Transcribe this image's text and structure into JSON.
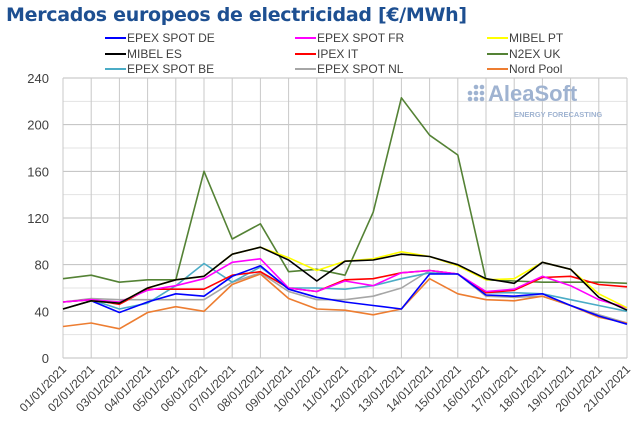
{
  "chart_data": {
    "type": "line",
    "title": "Mercados europeos de electricidad [€/MWh]",
    "xlabel": "",
    "ylabel": "",
    "ylim": [
      0,
      240
    ],
    "yticks": [
      0,
      40,
      80,
      120,
      160,
      200,
      240
    ],
    "grid": true,
    "legend_position": "top",
    "categories": [
      "01/01/2021",
      "02/01/2021",
      "03/01/2021",
      "04/01/2021",
      "05/01/2021",
      "06/01/2021",
      "07/01/2021",
      "08/01/2021",
      "09/01/2021",
      "10/01/2021",
      "11/01/2021",
      "12/01/2021",
      "13/01/2021",
      "14/01/2021",
      "15/01/2021",
      "16/01/2021",
      "17/01/2021",
      "18/01/2021",
      "19/01/2021",
      "20/01/2021",
      "21/01/2021"
    ],
    "series": [
      {
        "name": "EPEX SPOT DE",
        "color": "#0000ff",
        "values": [
          42,
          49,
          39,
          48,
          55,
          53,
          70,
          79,
          59,
          52,
          48,
          45,
          42,
          72,
          72,
          54,
          53,
          55,
          45,
          36,
          29
        ]
      },
      {
        "name": "EPEX SPOT FR",
        "color": "#ff00ff",
        "values": [
          48,
          50,
          48,
          58,
          62,
          68,
          82,
          85,
          60,
          57,
          66,
          62,
          73,
          75,
          72,
          57,
          59,
          70,
          62,
          50,
          43
        ]
      },
      {
        "name": "MIBEL PT",
        "color": "#ffff00",
        "values": [
          42,
          49,
          47,
          60,
          67,
          70,
          89,
          95,
          86,
          75,
          83,
          85,
          91,
          87,
          79,
          67,
          68,
          82,
          76,
          55,
          43
        ]
      },
      {
        "name": "MIBEL ES",
        "color": "#000000",
        "values": [
          42,
          49,
          47,
          60,
          67,
          70,
          89,
          95,
          84,
          66,
          83,
          84,
          89,
          87,
          80,
          68,
          64,
          82,
          76,
          52,
          41
        ]
      },
      {
        "name": "IPEX IT",
        "color": "#ff0000",
        "values": [
          48,
          50,
          46,
          59,
          59,
          59,
          71,
          74,
          60,
          57,
          67,
          68,
          73,
          75,
          72,
          56,
          58,
          69,
          70,
          63,
          61
        ]
      },
      {
        "name": "N2EX UK",
        "color": "#548235",
        "values": [
          68,
          71,
          65,
          67,
          67,
          160,
          102,
          115,
          74,
          76,
          71,
          125,
          223,
          191,
          174,
          67,
          66,
          65,
          65,
          65,
          64
        ]
      },
      {
        "name": "EPEX SPOT BE",
        "color": "#4bacc6",
        "values": [
          48,
          50,
          42,
          47,
          62,
          81,
          65,
          78,
          60,
          60,
          59,
          62,
          68,
          73,
          72,
          56,
          56,
          55,
          50,
          45,
          40
        ]
      },
      {
        "name": "EPEX SPOT NL",
        "color": "#a6a6a6",
        "values": [
          48,
          51,
          50,
          50,
          50,
          50,
          65,
          73,
          57,
          50,
          50,
          53,
          60,
          75,
          72,
          53,
          52,
          53,
          45,
          37,
          30
        ]
      },
      {
        "name": "Nord Pool",
        "color": "#ed7d31",
        "values": [
          27,
          30,
          25,
          39,
          44,
          40,
          63,
          72,
          51,
          42,
          41,
          37,
          42,
          68,
          55,
          50,
          49,
          53,
          45,
          35,
          30
        ]
      }
    ]
  },
  "watermark": {
    "brand": "AleaSoft",
    "tagline": "ENERGY FORECASTING"
  }
}
